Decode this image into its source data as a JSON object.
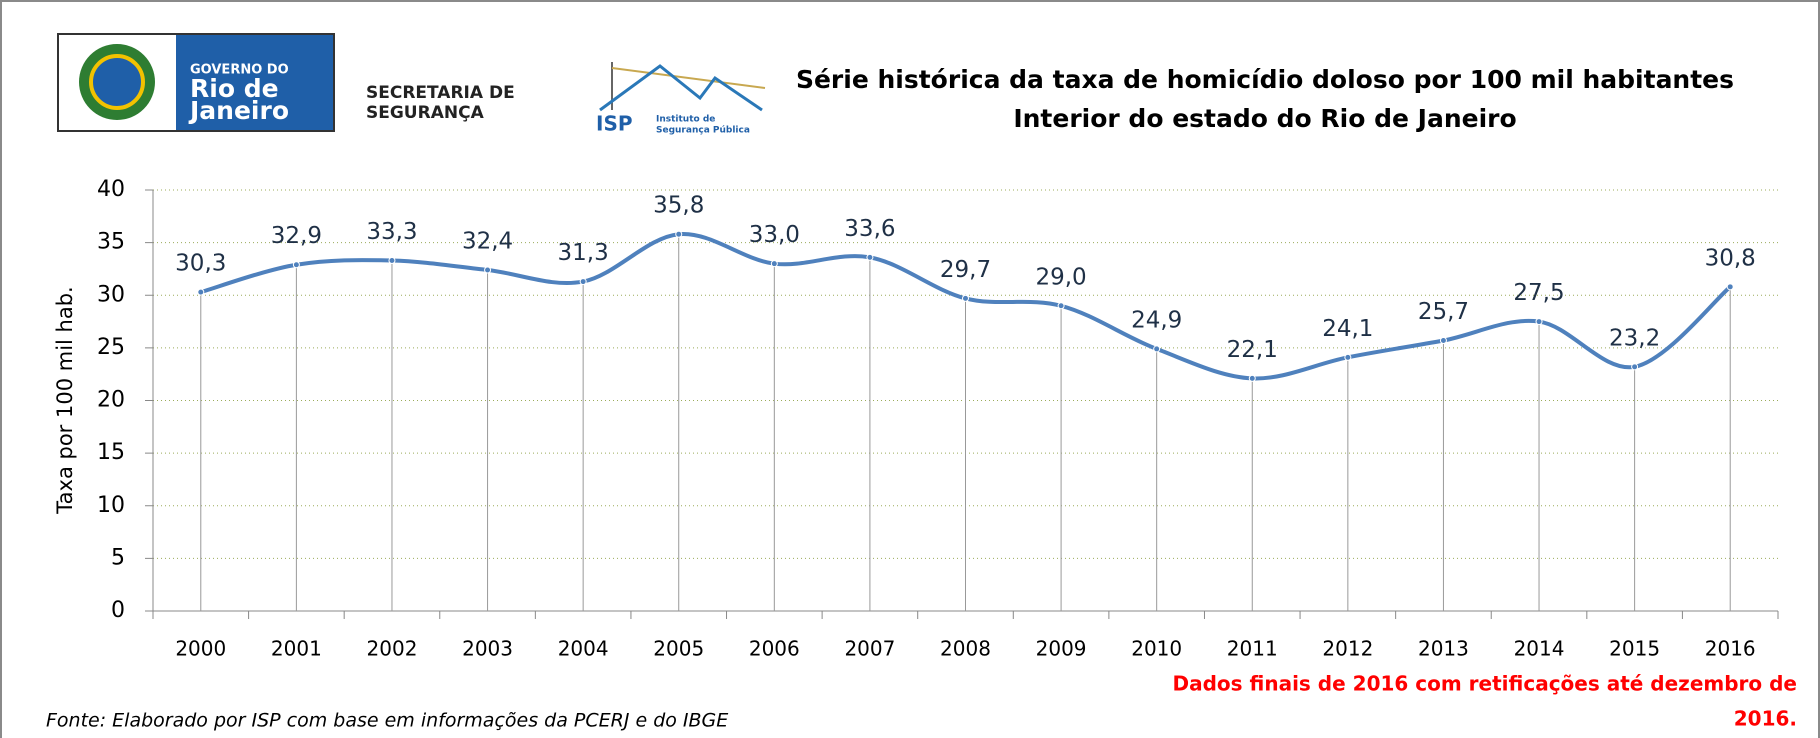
{
  "header": {
    "logo_rj": [
      "GOVERNO DO",
      "Rio de",
      "Janeiro"
    ],
    "secretaria": [
      "SECRETARIA DE",
      "SEGURANÇA"
    ],
    "isp": [
      "ISP",
      "Instituto de",
      "Segurança Pública"
    ]
  },
  "chart_data": {
    "type": "line",
    "title": [
      "Série histórica da taxa de homicídio doloso por 100 mil habitantes",
      "Interior do estado do Rio de Janeiro"
    ],
    "y_label": "Taxa por 100 mil hab.",
    "categories": [
      "2000",
      "2001",
      "2002",
      "2003",
      "2004",
      "2005",
      "2006",
      "2007",
      "2008",
      "2009",
      "2010",
      "2011",
      "2012",
      "2013",
      "2014",
      "2015",
      "2016"
    ],
    "series": [
      {
        "name": "Taxa",
        "color": "#4f81bd",
        "values": [
          30.3,
          32.9,
          33.3,
          32.4,
          31.3,
          35.8,
          33.0,
          33.6,
          29.7,
          29.0,
          24.9,
          22.1,
          24.1,
          25.7,
          27.5,
          23.2,
          30.8
        ],
        "value_labels": [
          "30,3",
          "32,9",
          "33,3",
          "32,4",
          "31,3",
          "35,8",
          "33,0",
          "33,6",
          "29,7",
          "29,0",
          "24,9",
          "22,1",
          "24,1",
          "25,7",
          "27,5",
          "23,2",
          "30,8"
        ]
      }
    ],
    "ylim": [
      0,
      40
    ],
    "yticks": [
      0,
      5,
      10,
      15,
      20,
      25,
      30,
      35,
      40
    ],
    "grid": true,
    "annotations": [
      "Dados finais de 2016 com retificações até dezembro de",
      "2016."
    ],
    "source": "Fonte: Elaborado por ISP com base em informações da PCERJ e do IBGE"
  }
}
